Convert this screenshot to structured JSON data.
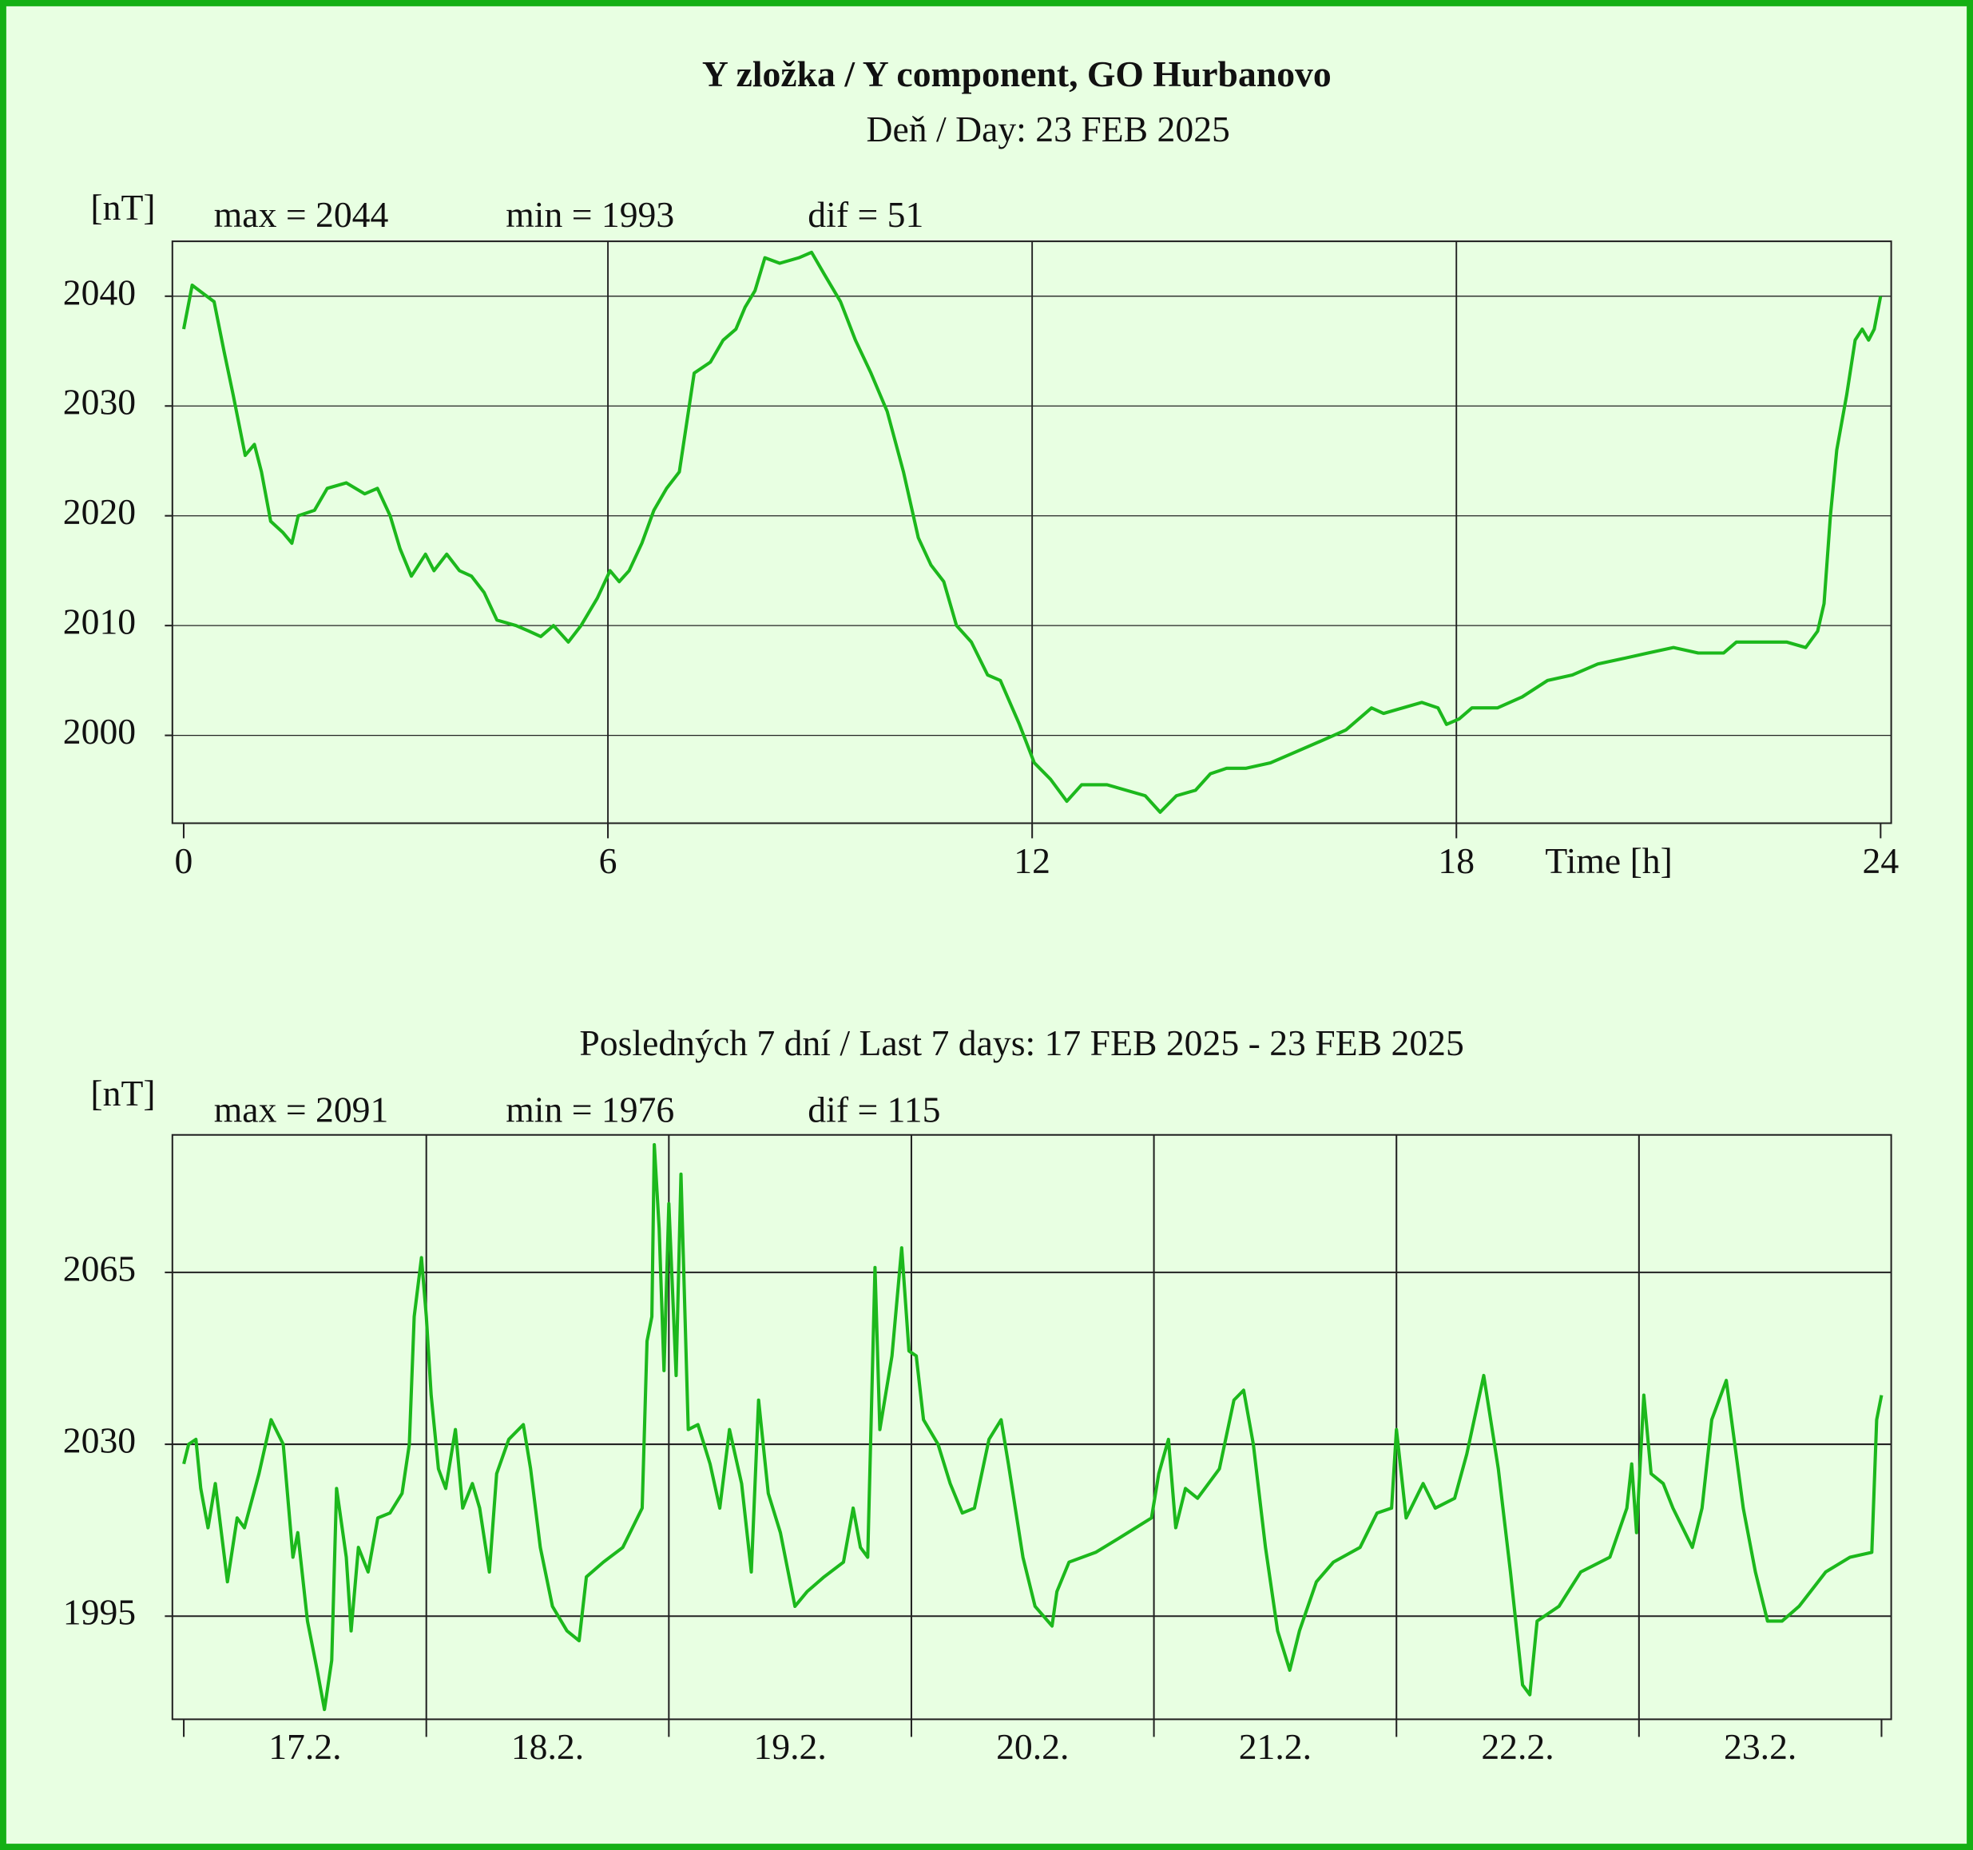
{
  "chart_data": [
    {
      "type": "line",
      "title": "Y zložka / Y component, GO Hurbanovo",
      "subtitle": "Deň  / Day: 23 FEB 2025",
      "ylabel": "[nT]",
      "annotations": [
        "max = 2044",
        "min = 1993",
        "dif = 51"
      ],
      "xlabel": "Time [h]",
      "xlim": [
        -0.16,
        24.15
      ],
      "xticks": [
        0,
        6,
        12,
        18,
        24
      ],
      "ylim": [
        1992,
        2045
      ],
      "yticks": [
        2000,
        2010,
        2020,
        2030,
        2040
      ],
      "grid": true,
      "x": [
        0,
        0.12,
        0.43,
        0.57,
        0.7,
        0.87,
        1.0,
        1.1,
        1.23,
        1.4,
        1.53,
        1.62,
        1.85,
        2.03,
        2.3,
        2.56,
        2.74,
        2.92,
        3.06,
        3.22,
        3.42,
        3.54,
        3.72,
        3.9,
        4.07,
        4.25,
        4.43,
        4.7,
        4.88,
        5.05,
        5.23,
        5.44,
        5.62,
        5.85,
        6.03,
        6.16,
        6.3,
        6.48,
        6.65,
        6.83,
        7.01,
        7.15,
        7.22,
        7.45,
        7.63,
        7.81,
        7.94,
        8.08,
        8.22,
        8.43,
        8.7,
        8.88,
        9.06,
        9.29,
        9.5,
        9.72,
        9.95,
        10.18,
        10.39,
        10.57,
        10.75,
        10.93,
        11.14,
        11.37,
        11.55,
        11.82,
        12.03,
        12.26,
        12.49,
        12.7,
        13.06,
        13.33,
        13.6,
        13.81,
        14.04,
        14.31,
        14.52,
        14.75,
        15.02,
        15.37,
        15.73,
        16.09,
        16.44,
        16.8,
        16.97,
        17.24,
        17.51,
        17.74,
        17.86,
        18.04,
        18.22,
        18.58,
        18.93,
        19.29,
        19.64,
        20.0,
        20.36,
        20.71,
        21.07,
        21.42,
        21.78,
        21.96,
        22.31,
        22.67,
        22.94,
        23.11,
        23.2,
        23.29,
        23.38,
        23.52,
        23.64,
        23.74,
        23.83,
        23.91,
        24
      ],
      "series": [
        {
          "color": "#1cb81c",
          "values": [
            2037,
            2041,
            2039.5,
            2035,
            2031,
            2025.5,
            2026.5,
            2024,
            2019.5,
            2018.5,
            2017.5,
            2020,
            2020.5,
            2022.5,
            2023,
            2022,
            2022.5,
            2020,
            2017,
            2014.5,
            2016.5,
            2015,
            2016.5,
            2015,
            2014.5,
            2013,
            2010.5,
            2010,
            2009.5,
            2009,
            2010,
            2008.5,
            2010,
            2012.5,
            2015,
            2014,
            2015,
            2017.5,
            2020.5,
            2022.5,
            2024,
            2030,
            2033,
            2034,
            2036,
            2037,
            2039,
            2040.5,
            2043.5,
            2043,
            2043.5,
            2044,
            2042,
            2039.5,
            2036,
            2033,
            2029.5,
            2024,
            2018,
            2015.5,
            2014,
            2010,
            2008.5,
            2005.5,
            2005,
            2001,
            1997.5,
            1996,
            1994,
            1995.5,
            1995.5,
            1995,
            1994.5,
            1993,
            1994.5,
            1995,
            1996.5,
            1997,
            1997,
            1997.5,
            1998.5,
            1999.5,
            2000.5,
            2002.5,
            2002,
            2002.5,
            2003,
            2002.5,
            2001,
            2001.5,
            2002.5,
            2002.5,
            2003.5,
            2005,
            2005.5,
            2006.5,
            2007,
            2007.5,
            2008,
            2007.5,
            2007.5,
            2008.5,
            2008.5,
            2008.5,
            2008,
            2009.5,
            2012,
            2020,
            2026,
            2031,
            2036,
            2037,
            2036,
            2037,
            2040
          ]
        }
      ]
    },
    {
      "type": "line",
      "subtitle": "Posledných 7 dní / Last 7 days: 17 FEB 2025 - 23 FEB 2025",
      "ylabel": "[nT]",
      "annotations": [
        "max = 2091",
        "min = 1976",
        "dif = 115"
      ],
      "categories": [
        "17.2.",
        "18.2.",
        "19.2.",
        "20.2.",
        "21.2.",
        "22.2.",
        "23.2."
      ],
      "xlim": [
        -0.047,
        7.04
      ],
      "ylim": [
        1974,
        2093
      ],
      "yticks": [
        1995,
        2030,
        2065
      ],
      "grid": true,
      "x": [
        0,
        0.02,
        0.05,
        0.07,
        0.1,
        0.13,
        0.18,
        0.22,
        0.25,
        0.31,
        0.36,
        0.41,
        0.45,
        0.47,
        0.51,
        0.55,
        0.58,
        0.61,
        0.63,
        0.67,
        0.69,
        0.72,
        0.76,
        0.8,
        0.85,
        0.9,
        0.93,
        0.95,
        0.98,
        1.0,
        1.02,
        1.05,
        1.08,
        1.12,
        1.15,
        1.19,
        1.22,
        1.26,
        1.29,
        1.34,
        1.4,
        1.43,
        1.47,
        1.52,
        1.58,
        1.63,
        1.66,
        1.73,
        1.81,
        1.89,
        1.91,
        1.93,
        1.94,
        1.96,
        1.98,
        2.0,
        2.03,
        2.05,
        2.08,
        2.12,
        2.17,
        2.21,
        2.25,
        2.3,
        2.34,
        2.37,
        2.41,
        2.46,
        2.52,
        2.57,
        2.64,
        2.72,
        2.76,
        2.79,
        2.82,
        2.85,
        2.87,
        2.92,
        2.96,
        2.99,
        3.02,
        3.05,
        3.11,
        3.16,
        3.21,
        3.26,
        3.32,
        3.37,
        3.4,
        3.46,
        3.51,
        3.58,
        3.6,
        3.65,
        3.76,
        3.86,
        3.99,
        4.02,
        4.06,
        4.09,
        4.13,
        4.18,
        4.27,
        4.33,
        4.37,
        4.41,
        4.46,
        4.51,
        4.56,
        4.6,
        4.67,
        4.74,
        4.85,
        4.92,
        4.98,
        5.0,
        5.04,
        5.11,
        5.16,
        5.24,
        5.29,
        5.36,
        5.42,
        5.47,
        5.52,
        5.55,
        5.58,
        5.67,
        5.76,
        5.88,
        5.95,
        5.97,
        5.99,
        6.02,
        6.05,
        6.1,
        6.14,
        6.22,
        6.26,
        6.3,
        6.36,
        6.43,
        6.48,
        6.53,
        6.59,
        6.66,
        6.77,
        6.87,
        6.96,
        6.98,
        7.0
      ],
      "series": [
        {
          "color": "#1cb81c",
          "values": [
            2026,
            2030,
            2031,
            2021,
            2013,
            2022,
            2002,
            2015,
            2013,
            2024,
            2035,
            2030,
            2007,
            2012,
            1994,
            1984,
            1976,
            1986,
            2021,
            2007,
            1992,
            2009,
            2004,
            2015,
            2016,
            2020,
            2030,
            2056,
            2068,
            2056,
            2040,
            2025,
            2021,
            2033,
            2017,
            2022,
            2017,
            2004,
            2024,
            2031,
            2034,
            2025,
            2009,
            1997,
            1992,
            1990,
            2003,
            2006,
            2009,
            2017,
            2051,
            2056,
            2091,
            2074,
            2045,
            2079,
            2044,
            2085,
            2033,
            2034,
            2026,
            2017,
            2033,
            2022,
            2004,
            2039,
            2020,
            2012,
            1997,
            2000,
            2003,
            2006,
            2017,
            2009,
            2007,
            2066,
            2033,
            2048,
            2070,
            2049,
            2048,
            2035,
            2030,
            2022,
            2016,
            2017,
            2031,
            2035,
            2026,
            2007,
            1997,
            1993,
            2000,
            2006,
            2008,
            2011,
            2015,
            2024,
            2031,
            2013,
            2021,
            2019,
            2025,
            2039,
            2041,
            2030,
            2009,
            1992,
            1984,
            1992,
            2002,
            2006,
            2009,
            2016,
            2017,
            2033,
            2015,
            2022,
            2017,
            2019,
            2028,
            2044,
            2025,
            2004,
            1981,
            1979,
            1994,
            1997,
            2004,
            2007,
            2017,
            2026,
            2012,
            2040,
            2024,
            2022,
            2017,
            2009,
            2017,
            2035,
            2043,
            2017,
            2004,
            1994,
            1994,
            1997,
            2004,
            2007,
            2008,
            2035,
            2040
          ]
        }
      ]
    }
  ]
}
